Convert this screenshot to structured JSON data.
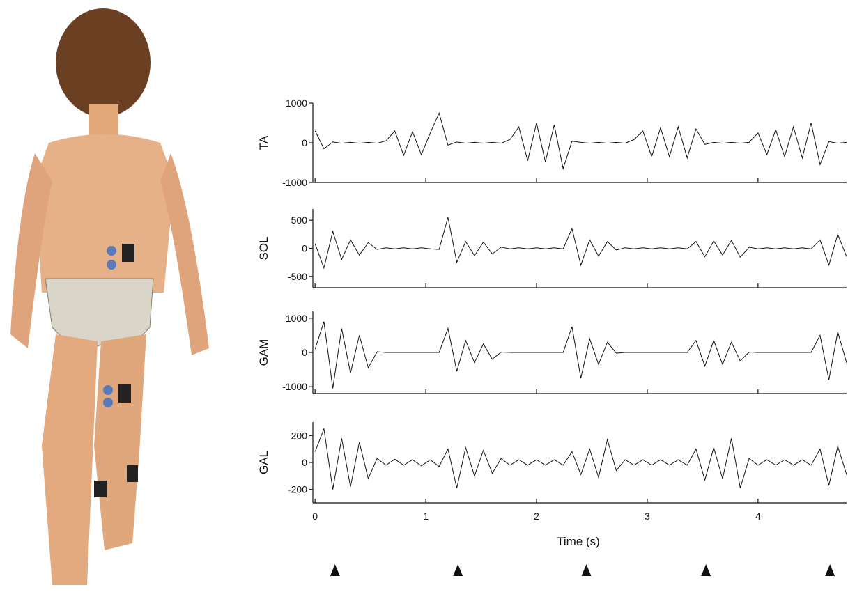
{
  "chart_data": {
    "type": "line",
    "xlabel": "Time (s)",
    "xlim": [
      -0.02,
      4.8
    ],
    "xticks": [
      0,
      1,
      2,
      3,
      4
    ],
    "x": [
      0,
      0.08,
      0.16,
      0.24,
      0.32,
      0.4,
      0.48,
      0.56,
      0.64,
      0.72,
      0.8,
      0.88,
      0.96,
      1.04,
      1.12,
      1.2,
      1.28,
      1.36,
      1.44,
      1.52,
      1.6,
      1.68,
      1.76,
      1.84,
      1.92,
      2.0,
      2.08,
      2.16,
      2.24,
      2.32,
      2.4,
      2.48,
      2.56,
      2.64,
      2.72,
      2.8,
      2.88,
      2.96,
      3.04,
      3.12,
      3.2,
      3.28,
      3.36,
      3.44,
      3.52,
      3.6,
      3.68,
      3.76,
      3.84,
      3.92,
      4.0,
      4.08,
      4.16,
      4.24,
      4.32,
      4.4,
      4.48,
      4.56,
      4.64,
      4.72,
      4.8
    ],
    "markers": [
      0.18,
      1.29,
      2.45,
      3.53,
      4.65
    ],
    "color": "#111111",
    "panels": [
      {
        "ylabel": "TA",
        "ylim": [
          -1000,
          1000
        ],
        "yticks": [
          -1000,
          0,
          1000
        ],
        "values": [
          300,
          -150,
          20,
          -10,
          10,
          -10,
          10,
          -10,
          50,
          300,
          -320,
          280,
          -300,
          250,
          750,
          -60,
          20,
          -10,
          10,
          -10,
          10,
          -10,
          80,
          400,
          -450,
          500,
          -480,
          450,
          -650,
          40,
          10,
          -10,
          10,
          -10,
          10,
          -10,
          80,
          300,
          -350,
          380,
          -350,
          400,
          -380,
          350,
          -40,
          10,
          -10,
          10,
          -10,
          10,
          250,
          -300,
          330,
          -350,
          400,
          -380,
          500,
          -550,
          30,
          -10,
          10
        ]
      },
      {
        "ylabel": "SOL",
        "ylim": [
          -700,
          700
        ],
        "yticks": [
          -500,
          0,
          500
        ],
        "values": [
          80,
          -350,
          300,
          -200,
          150,
          -120,
          100,
          -20,
          10,
          -10,
          10,
          -10,
          10,
          -10,
          -20,
          550,
          -250,
          120,
          -130,
          110,
          -100,
          20,
          -10,
          10,
          -10,
          10,
          -10,
          10,
          -10,
          350,
          -300,
          150,
          -140,
          120,
          -30,
          10,
          -10,
          10,
          -10,
          10,
          -10,
          10,
          -10,
          120,
          -150,
          130,
          -120,
          140,
          -160,
          20,
          -10,
          10,
          -10,
          10,
          -10,
          10,
          -10,
          150,
          -300,
          250,
          -150
        ]
      },
      {
        "ylabel": "GAM",
        "ylim": [
          -1200,
          1200
        ],
        "yticks": [
          -1000,
          0,
          1000
        ],
        "values": [
          100,
          900,
          -1050,
          700,
          -600,
          500,
          -450,
          20,
          0,
          0,
          0,
          0,
          0,
          0,
          0,
          700,
          -550,
          350,
          -300,
          250,
          -200,
          10,
          0,
          0,
          0,
          0,
          0,
          0,
          0,
          750,
          -750,
          400,
          -350,
          300,
          -20,
          0,
          0,
          0,
          0,
          0,
          0,
          0,
          0,
          350,
          -400,
          350,
          -350,
          300,
          -250,
          10,
          0,
          0,
          0,
          0,
          0,
          0,
          0,
          500,
          -800,
          600,
          -300
        ]
      },
      {
        "ylabel": "GAL",
        "ylim": [
          -300,
          300
        ],
        "yticks": [
          -200,
          0,
          200
        ],
        "values": [
          80,
          250,
          -200,
          180,
          -180,
          150,
          -120,
          30,
          -20,
          25,
          -20,
          20,
          -25,
          20,
          -30,
          100,
          -190,
          110,
          -100,
          90,
          -80,
          30,
          -20,
          20,
          -20,
          20,
          -20,
          20,
          -20,
          80,
          -90,
          100,
          -110,
          170,
          -60,
          20,
          -20,
          20,
          -20,
          20,
          -20,
          20,
          -20,
          100,
          -130,
          110,
          -120,
          180,
          -190,
          30,
          -20,
          20,
          -20,
          20,
          -20,
          20,
          -20,
          100,
          -170,
          120,
          -90
        ]
      }
    ]
  }
}
